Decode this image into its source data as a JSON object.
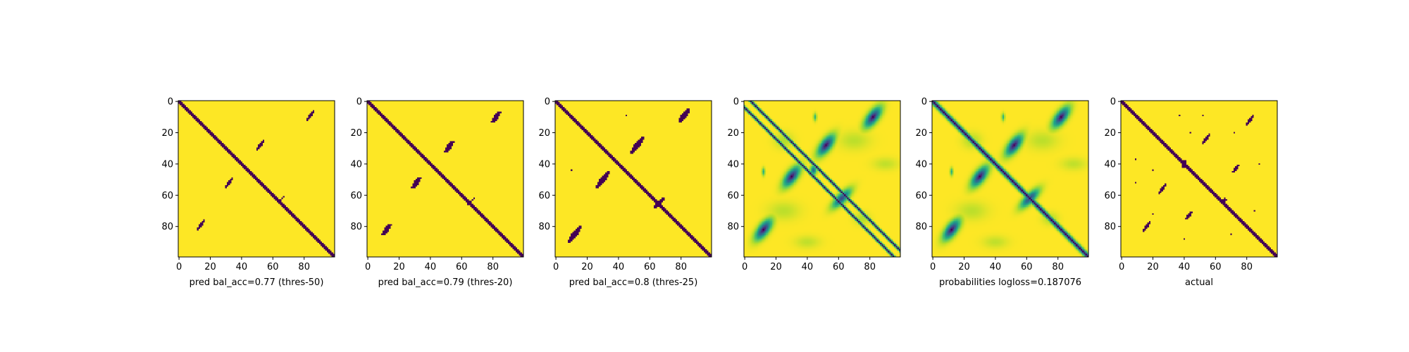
{
  "chart_data": [
    {
      "type": "heatmap",
      "xlabel": "pred bal_acc=0.77 (thres-50)",
      "xticks": [
        0,
        20,
        40,
        60,
        80
      ],
      "yticks": [
        0,
        20,
        40,
        60,
        80
      ],
      "xlim": [
        0,
        99
      ],
      "ylim": [
        99,
        0
      ],
      "value_range": [
        0,
        1
      ],
      "colormap": "viridis",
      "binary": true,
      "diagonal_width": 1.7,
      "blobs": [
        {
          "cx": 14,
          "cy": 79,
          "ux": 0.6,
          "uy": -0.8,
          "len": 5,
          "wid": 1.3,
          "val": 1
        },
        {
          "cx": 32,
          "cy": 52,
          "ux": 0.6,
          "uy": -0.8,
          "len": 5,
          "wid": 1.3,
          "val": 1
        },
        {
          "cx": 52,
          "cy": 28,
          "ux": 0.6,
          "uy": -0.8,
          "len": 5,
          "wid": 1.3,
          "val": 1
        },
        {
          "cx": 84,
          "cy": 9,
          "ux": 0.6,
          "uy": -0.8,
          "len": 5,
          "wid": 1.3,
          "val": 1
        },
        {
          "cx": 66,
          "cy": 62,
          "ux": 0.7,
          "uy": -0.7,
          "len": 2,
          "wid": 0.6,
          "val": 0.9
        }
      ]
    },
    {
      "type": "heatmap",
      "xlabel": "pred bal_acc=0.79 (thres-20)",
      "xticks": [
        0,
        20,
        40,
        60,
        80
      ],
      "yticks": [
        0,
        20,
        40,
        60,
        80
      ],
      "xlim": [
        0,
        99
      ],
      "ylim": [
        99,
        0
      ],
      "value_range": [
        0,
        1
      ],
      "colormap": "viridis",
      "binary": true,
      "diagonal_width": 1.9,
      "blobs": [
        {
          "cx": 12,
          "cy": 82,
          "ux": 0.6,
          "uy": -0.8,
          "len": 6,
          "wid": 1.8,
          "val": 1
        },
        {
          "cx": 31,
          "cy": 52,
          "ux": 0.6,
          "uy": -0.8,
          "len": 6,
          "wid": 1.8,
          "val": 1
        },
        {
          "cx": 52,
          "cy": 29,
          "ux": 0.6,
          "uy": -0.8,
          "len": 6,
          "wid": 1.8,
          "val": 1
        },
        {
          "cx": 82,
          "cy": 10,
          "ux": 0.6,
          "uy": -0.8,
          "len": 6,
          "wid": 1.8,
          "val": 1
        },
        {
          "cx": 66,
          "cy": 64,
          "ux": 0.7,
          "uy": -0.7,
          "len": 4,
          "wid": 0.8,
          "val": 0.9
        }
      ]
    },
    {
      "type": "heatmap",
      "xlabel": "pred bal_acc=0.8 (thres-25)",
      "xticks": [
        0,
        20,
        40,
        60,
        80
      ],
      "yticks": [
        0,
        20,
        40,
        60,
        80
      ],
      "xlim": [
        0,
        99
      ],
      "ylim": [
        99,
        0
      ],
      "value_range": [
        0,
        1
      ],
      "colormap": "viridis",
      "binary": true,
      "diagonal_width": 2.2,
      "blobs": [
        {
          "cx": 12,
          "cy": 85,
          "ux": 0.6,
          "uy": -0.8,
          "len": 8,
          "wid": 2.2,
          "val": 1
        },
        {
          "cx": 30,
          "cy": 50,
          "ux": 0.6,
          "uy": -0.8,
          "len": 8,
          "wid": 2.2,
          "val": 1
        },
        {
          "cx": 52,
          "cy": 28,
          "ux": 0.6,
          "uy": -0.8,
          "len": 8,
          "wid": 2.2,
          "val": 1
        },
        {
          "cx": 82,
          "cy": 9,
          "ux": 0.6,
          "uy": -0.8,
          "len": 7,
          "wid": 2.0,
          "val": 1
        },
        {
          "cx": 66,
          "cy": 65,
          "ux": 0.7,
          "uy": -0.7,
          "len": 6,
          "wid": 1.2,
          "val": 1
        },
        {
          "cx": 10,
          "cy": 44,
          "ux": 1,
          "uy": 0,
          "len": 0.5,
          "wid": 0.6,
          "val": 0.9
        },
        {
          "cx": 45,
          "cy": 9,
          "ux": 1,
          "uy": 0,
          "len": 0.5,
          "wid": 0.6,
          "val": 0.9
        }
      ]
    },
    {
      "type": "heatmap",
      "xlabel": "",
      "xticks": [
        0,
        20,
        40,
        60,
        80
      ],
      "yticks": [
        0,
        20,
        40,
        60,
        80
      ],
      "xlim": [
        0,
        99
      ],
      "ylim": [
        99,
        0
      ],
      "value_range": [
        0,
        1
      ],
      "colormap": "viridis",
      "binary": false,
      "diagonal_width": 1.2,
      "diagonal_offsets": [
        -4,
        4
      ],
      "blobs": [
        {
          "cx": 12,
          "cy": 82,
          "ux": 0.6,
          "uy": -0.8,
          "len": 8,
          "wid": 3.5,
          "val": 1
        },
        {
          "cx": 30,
          "cy": 48,
          "ux": 0.6,
          "uy": -0.8,
          "len": 8,
          "wid": 3.5,
          "val": 1
        },
        {
          "cx": 52,
          "cy": 28,
          "ux": 0.6,
          "uy": -0.8,
          "len": 8,
          "wid": 3.5,
          "val": 1
        },
        {
          "cx": 82,
          "cy": 10,
          "ux": 0.6,
          "uy": -0.8,
          "len": 8,
          "wid": 3.5,
          "val": 1
        },
        {
          "cx": 62,
          "cy": 62,
          "ux": 0.7,
          "uy": -0.7,
          "len": 8,
          "wid": 3.0,
          "val": 0.9
        },
        {
          "cx": 44,
          "cy": 44,
          "ux": 1,
          "uy": 0,
          "len": 2,
          "wid": 3,
          "val": 0.8
        },
        {
          "cx": 12,
          "cy": 45,
          "ux": 1,
          "uy": 0,
          "len": 1,
          "wid": 2.5,
          "val": 0.5
        },
        {
          "cx": 45,
          "cy": 10,
          "ux": 1,
          "uy": 0,
          "len": 1,
          "wid": 2.5,
          "val": 0.5
        },
        {
          "cx": 25,
          "cy": 25,
          "ux": 1,
          "uy": 0,
          "len": 6,
          "wid": 5,
          "val": 0.18
        },
        {
          "cx": 70,
          "cy": 25,
          "ux": 1,
          "uy": 0,
          "len": 10,
          "wid": 6,
          "val": 0.15
        },
        {
          "cx": 25,
          "cy": 70,
          "ux": 1,
          "uy": 0,
          "len": 10,
          "wid": 6,
          "val": 0.15
        },
        {
          "cx": 75,
          "cy": 75,
          "ux": 1,
          "uy": 0,
          "len": 5,
          "wid": 4,
          "val": 0.18
        },
        {
          "cx": 40,
          "cy": 90,
          "ux": 1,
          "uy": 0,
          "len": 8,
          "wid": 4,
          "val": 0.14
        },
        {
          "cx": 90,
          "cy": 40,
          "ux": 1,
          "uy": 0,
          "len": 8,
          "wid": 4,
          "val": 0.14
        }
      ]
    },
    {
      "type": "heatmap",
      "xlabel": "probabilities logloss=0.187076",
      "xticks": [
        0,
        20,
        40,
        60,
        80
      ],
      "yticks": [
        0,
        20,
        40,
        60,
        80
      ],
      "xlim": [
        0,
        99
      ],
      "ylim": [
        99,
        0
      ],
      "value_range": [
        0,
        1
      ],
      "colormap": "viridis",
      "binary": false,
      "diagonal_width": 2.2,
      "blobs": [
        {
          "cx": 12,
          "cy": 82,
          "ux": 0.6,
          "uy": -0.8,
          "len": 8,
          "wid": 3.5,
          "val": 1
        },
        {
          "cx": 30,
          "cy": 48,
          "ux": 0.6,
          "uy": -0.8,
          "len": 8,
          "wid": 3.5,
          "val": 1
        },
        {
          "cx": 52,
          "cy": 28,
          "ux": 0.6,
          "uy": -0.8,
          "len": 8,
          "wid": 3.5,
          "val": 1
        },
        {
          "cx": 82,
          "cy": 10,
          "ux": 0.6,
          "uy": -0.8,
          "len": 8,
          "wid": 3.5,
          "val": 1
        },
        {
          "cx": 62,
          "cy": 62,
          "ux": 0.7,
          "uy": -0.7,
          "len": 8,
          "wid": 3.0,
          "val": 0.9
        },
        {
          "cx": 12,
          "cy": 45,
          "ux": 1,
          "uy": 0,
          "len": 1,
          "wid": 2.5,
          "val": 0.5
        },
        {
          "cx": 45,
          "cy": 10,
          "ux": 1,
          "uy": 0,
          "len": 1,
          "wid": 2.5,
          "val": 0.5
        },
        {
          "cx": 25,
          "cy": 25,
          "ux": 1,
          "uy": 0,
          "len": 6,
          "wid": 5,
          "val": 0.18
        },
        {
          "cx": 70,
          "cy": 25,
          "ux": 1,
          "uy": 0,
          "len": 10,
          "wid": 6,
          "val": 0.15
        },
        {
          "cx": 25,
          "cy": 70,
          "ux": 1,
          "uy": 0,
          "len": 10,
          "wid": 6,
          "val": 0.15
        },
        {
          "cx": 75,
          "cy": 75,
          "ux": 1,
          "uy": 0,
          "len": 5,
          "wid": 4,
          "val": 0.18
        },
        {
          "cx": 40,
          "cy": 90,
          "ux": 1,
          "uy": 0,
          "len": 8,
          "wid": 4,
          "val": 0.14
        },
        {
          "cx": 90,
          "cy": 40,
          "ux": 1,
          "uy": 0,
          "len": 8,
          "wid": 4,
          "val": 0.14
        }
      ]
    },
    {
      "type": "heatmap",
      "xlabel": "actual",
      "xticks": [
        0,
        20,
        40,
        60,
        80
      ],
      "yticks": [
        0,
        20,
        40,
        60,
        80
      ],
      "xlim": [
        0,
        99
      ],
      "ylim": [
        99,
        0
      ],
      "value_range": [
        0,
        1
      ],
      "colormap": "viridis",
      "binary": true,
      "diagonal_width": 1.5,
      "blobs": [
        {
          "cx": 40,
          "cy": 40,
          "ux": 1,
          "uy": 0,
          "len": 2,
          "wid": 3.5,
          "val": 1
        },
        {
          "cx": 66,
          "cy": 63,
          "ux": 1,
          "uy": 0,
          "len": 1.5,
          "wid": 2,
          "val": 1
        },
        {
          "cx": 16,
          "cy": 80,
          "ux": 0.6,
          "uy": -0.8,
          "len": 6,
          "wid": 1.0,
          "val": 1
        },
        {
          "cx": 26,
          "cy": 56,
          "ux": 0.6,
          "uy": -0.8,
          "len": 5,
          "wid": 1.0,
          "val": 1
        },
        {
          "cx": 54,
          "cy": 24,
          "ux": 0.6,
          "uy": -0.8,
          "len": 6,
          "wid": 1.0,
          "val": 1
        },
        {
          "cx": 82,
          "cy": 12,
          "ux": 0.6,
          "uy": -0.8,
          "len": 6,
          "wid": 1.0,
          "val": 1
        },
        {
          "cx": 73,
          "cy": 43,
          "ux": 0.6,
          "uy": -0.8,
          "len": 4,
          "wid": 1.0,
          "val": 1
        },
        {
          "cx": 43,
          "cy": 73,
          "ux": 0.6,
          "uy": -0.8,
          "len": 4,
          "wid": 1.0,
          "val": 1
        },
        {
          "cx": 9,
          "cy": 37,
          "ux": 1,
          "uy": 0,
          "len": 0.5,
          "wid": 1,
          "val": 1
        },
        {
          "cx": 37,
          "cy": 9,
          "ux": 1,
          "uy": 0,
          "len": 0.5,
          "wid": 1,
          "val": 1
        },
        {
          "cx": 52,
          "cy": 9,
          "ux": 1,
          "uy": 0,
          "len": 0.5,
          "wid": 1,
          "val": 1
        },
        {
          "cx": 9,
          "cy": 52,
          "ux": 1,
          "uy": 0,
          "len": 0.5,
          "wid": 1,
          "val": 1
        },
        {
          "cx": 20,
          "cy": 44,
          "ux": 1,
          "uy": 0,
          "len": 0.5,
          "wid": 1,
          "val": 1
        },
        {
          "cx": 44,
          "cy": 20,
          "ux": 1,
          "uy": 0,
          "len": 0.5,
          "wid": 1,
          "val": 1
        },
        {
          "cx": 72,
          "cy": 20,
          "ux": 1,
          "uy": 0,
          "len": 0.5,
          "wid": 1,
          "val": 1
        },
        {
          "cx": 20,
          "cy": 72,
          "ux": 1,
          "uy": 0,
          "len": 0.5,
          "wid": 1,
          "val": 1
        },
        {
          "cx": 88,
          "cy": 40,
          "ux": 1,
          "uy": 0,
          "len": 0.5,
          "wid": 1,
          "val": 1
        },
        {
          "cx": 40,
          "cy": 88,
          "ux": 1,
          "uy": 0,
          "len": 0.5,
          "wid": 1,
          "val": 1
        },
        {
          "cx": 85,
          "cy": 70,
          "ux": 1,
          "uy": 0,
          "len": 0.5,
          "wid": 1,
          "val": 1
        },
        {
          "cx": 70,
          "cy": 85,
          "ux": 1,
          "uy": 0,
          "len": 0.5,
          "wid": 1,
          "val": 1
        }
      ]
    }
  ]
}
